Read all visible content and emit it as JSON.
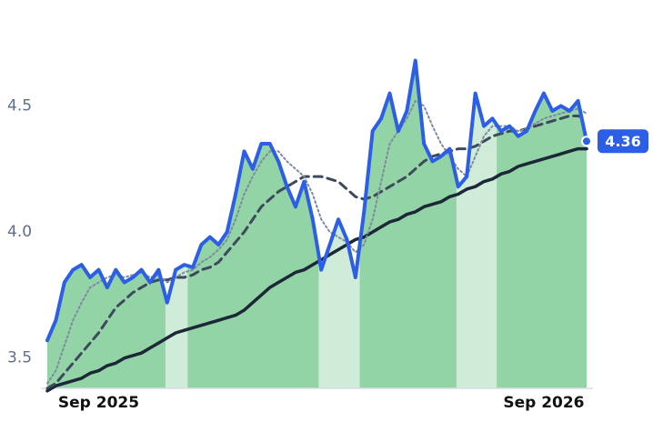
{
  "chart_data": {
    "type": "line",
    "x": [
      0,
      1,
      2,
      3,
      4,
      5,
      6,
      7,
      8,
      9,
      10,
      11,
      12,
      13,
      14,
      15,
      16,
      17,
      18,
      19,
      20,
      21,
      22,
      23,
      24,
      25,
      26,
      27,
      28,
      29,
      30,
      31,
      32,
      33,
      34,
      35,
      36,
      37,
      38,
      39,
      40,
      41,
      42,
      43,
      44,
      45,
      46,
      47,
      48,
      49,
      50,
      51,
      52,
      53,
      54,
      55,
      56,
      57,
      58,
      59,
      60,
      61,
      62,
      63
    ],
    "xlim": [
      0,
      63
    ],
    "xticks": [
      {
        "value": 6,
        "label": "Sep 2025"
      },
      {
        "value": 58,
        "label": "Sep 2026"
      }
    ],
    "ylim": [
      3.38,
      4.92
    ],
    "yticks": [
      3.5,
      {
        "value": 4,
        "label": "4.0"
      },
      4.5
    ],
    "area_color": "#93d4a6",
    "bands": [
      [
        13.8,
        16.4
      ],
      [
        31.7,
        36.5
      ],
      [
        47.8,
        52.5
      ]
    ],
    "band_color": "#ffffff",
    "series": [
      {
        "color": "#2c5fe6",
        "dash": "solid",
        "width": 4,
        "fill": true,
        "values": [
          3.57,
          3.65,
          3.8,
          3.85,
          3.87,
          3.82,
          3.85,
          3.78,
          3.85,
          3.8,
          3.82,
          3.85,
          3.8,
          3.85,
          3.72,
          3.85,
          3.87,
          3.86,
          3.95,
          3.98,
          3.95,
          4.0,
          4.15,
          4.32,
          4.25,
          4.35,
          4.35,
          4.28,
          4.18,
          4.1,
          4.2,
          4.05,
          3.85,
          3.95,
          4.05,
          3.97,
          3.82,
          4.08,
          4.4,
          4.45,
          4.55,
          4.4,
          4.48,
          4.68,
          4.35,
          4.28,
          4.3,
          4.33,
          4.18,
          4.22,
          4.55,
          4.42,
          4.45,
          4.4,
          4.42,
          4.38,
          4.4,
          4.48,
          4.55,
          4.48,
          4.5,
          4.48,
          4.52,
          4.36
        ]
      },
      {
        "color": "#7f8aa0",
        "dash": "dotted",
        "width": 2,
        "values": [
          3.4,
          3.45,
          3.55,
          3.65,
          3.72,
          3.78,
          3.8,
          3.82,
          3.83,
          3.82,
          3.83,
          3.84,
          3.82,
          3.83,
          3.8,
          3.82,
          3.84,
          3.85,
          3.88,
          3.9,
          3.93,
          3.97,
          4.05,
          4.15,
          4.22,
          4.28,
          4.32,
          4.32,
          4.28,
          4.25,
          4.22,
          4.15,
          4.05,
          4.0,
          3.98,
          3.96,
          3.92,
          3.95,
          4.05,
          4.2,
          4.35,
          4.4,
          4.45,
          4.52,
          4.5,
          4.42,
          4.35,
          4.3,
          4.25,
          4.22,
          4.3,
          4.38,
          4.42,
          4.42,
          4.42,
          4.4,
          4.41,
          4.43,
          4.45,
          4.46,
          4.47,
          4.48,
          4.49,
          4.47
        ]
      },
      {
        "color": "#3d4a5c",
        "dash": "dashed",
        "width": 3,
        "values": [
          3.38,
          3.4,
          3.44,
          3.48,
          3.52,
          3.56,
          3.6,
          3.65,
          3.7,
          3.73,
          3.76,
          3.78,
          3.8,
          3.81,
          3.81,
          3.82,
          3.82,
          3.83,
          3.85,
          3.86,
          3.88,
          3.92,
          3.96,
          4.0,
          4.05,
          4.1,
          4.13,
          4.16,
          4.18,
          4.2,
          4.22,
          4.22,
          4.22,
          4.21,
          4.2,
          4.17,
          4.14,
          4.13,
          4.14,
          4.16,
          4.18,
          4.2,
          4.22,
          4.25,
          4.28,
          4.3,
          4.31,
          4.32,
          4.33,
          4.33,
          4.34,
          4.36,
          4.38,
          4.39,
          4.4,
          4.4,
          4.41,
          4.42,
          4.43,
          4.44,
          4.45,
          4.46,
          4.46,
          4.45
        ]
      },
      {
        "color": "#1c2738",
        "dash": "solid",
        "width": 3.5,
        "values": [
          3.37,
          3.39,
          3.4,
          3.41,
          3.42,
          3.44,
          3.45,
          3.47,
          3.48,
          3.5,
          3.51,
          3.52,
          3.54,
          3.56,
          3.58,
          3.6,
          3.61,
          3.62,
          3.63,
          3.64,
          3.65,
          3.66,
          3.67,
          3.69,
          3.72,
          3.75,
          3.78,
          3.8,
          3.82,
          3.84,
          3.85,
          3.87,
          3.89,
          3.91,
          3.93,
          3.95,
          3.97,
          3.98,
          4.0,
          4.02,
          4.04,
          4.05,
          4.07,
          4.08,
          4.1,
          4.11,
          4.12,
          4.14,
          4.15,
          4.17,
          4.18,
          4.2,
          4.21,
          4.23,
          4.24,
          4.26,
          4.27,
          4.28,
          4.29,
          4.3,
          4.31,
          4.32,
          4.33,
          4.33
        ]
      }
    ]
  }
}
